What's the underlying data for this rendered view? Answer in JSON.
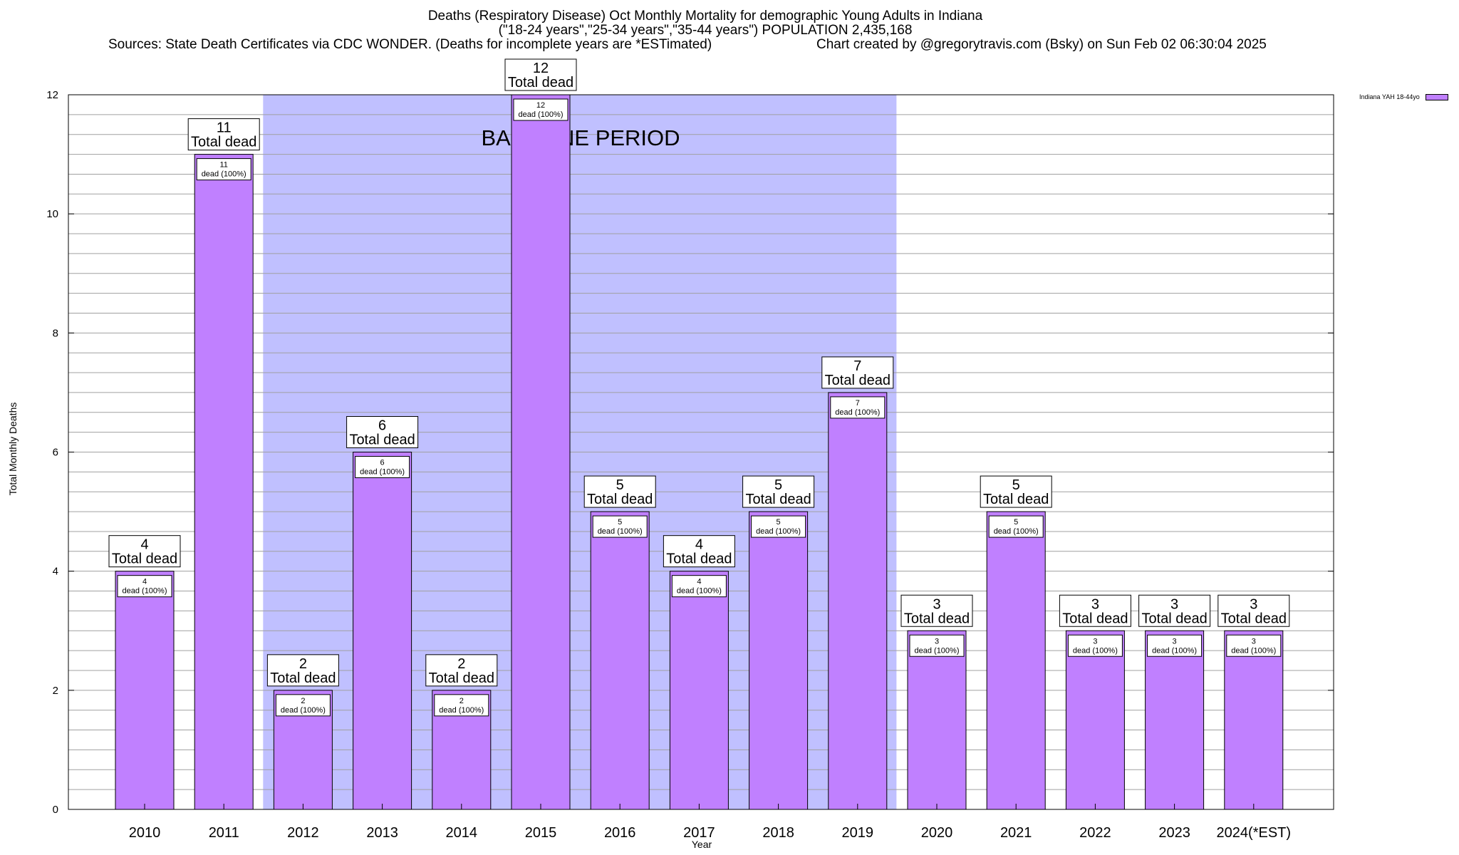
{
  "header": {
    "title_line1": "Deaths (Respiratory Disease) Oct Monthly Mortality for demographic Young Adults in Indiana",
    "title_line2": "(\"18-24 years\",\"25-34 years\",\"35-44 years\") POPULATION 2,435,168",
    "sources": "Sources: State Death Certificates via CDC WONDER. (Deaths for incomplete years are *ESTimated)",
    "credit": "Chart created by @gregorytravis.com (Bsky) on Sun Feb 02 06:30:04 2025"
  },
  "chart_data": {
    "type": "bar",
    "title": "Deaths (Respiratory Disease) Oct Monthly Mortality for demographic Young Adults in Indiana",
    "xlabel": "Year",
    "ylabel": "Total Monthly Deaths",
    "ylim": [
      0,
      12
    ],
    "yticks": [
      0,
      2,
      4,
      6,
      8,
      10,
      12
    ],
    "grid": true,
    "categories": [
      "2010",
      "2011",
      "2012",
      "2013",
      "2014",
      "2015",
      "2016",
      "2017",
      "2018",
      "2019",
      "2020",
      "2021",
      "2022",
      "2023",
      "2024(*EST)"
    ],
    "series": [
      {
        "name": "Indiana YAH 18-44yo",
        "color": "#c080ff",
        "values": [
          4,
          11,
          2,
          6,
          2,
          12,
          5,
          4,
          5,
          7,
          3,
          5,
          3,
          3,
          3
        ]
      }
    ],
    "total_label_suffix": "Total dead",
    "inner_label_suffix": "dead (100%)",
    "baseline": {
      "label": "BASELINE PERIOD",
      "start": "2012",
      "end": "2019",
      "color": "#c0c0ff"
    }
  }
}
